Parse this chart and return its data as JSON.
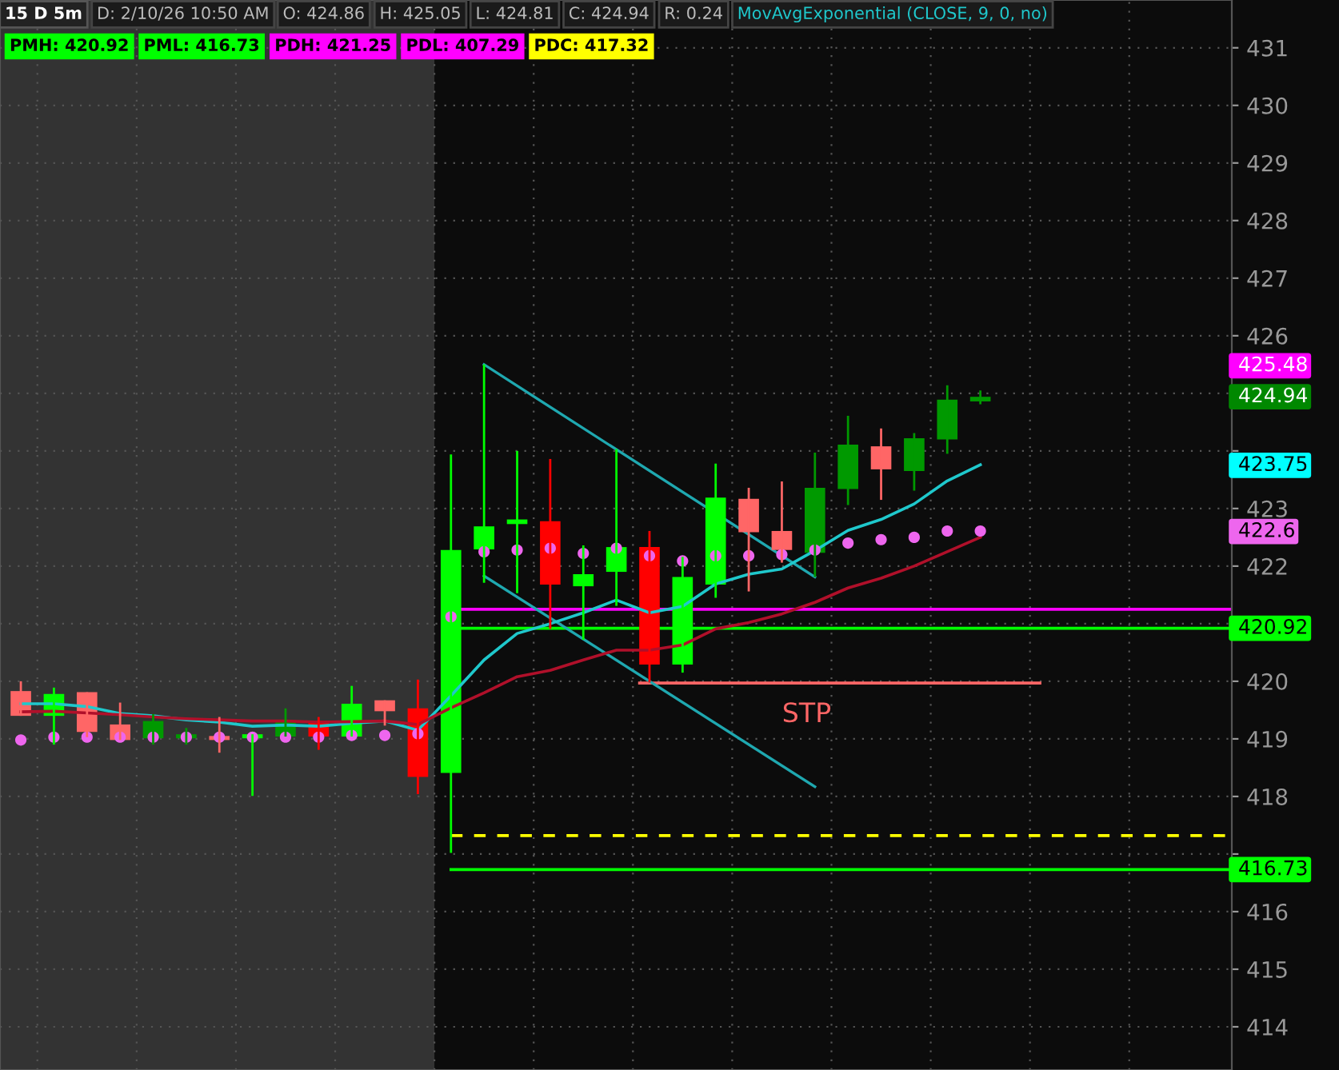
{
  "chart_data": {
    "type": "candlestick",
    "title": "15 D 5m",
    "categories": [
      null,
      null,
      null,
      null,
      null,
      null,
      null,
      null,
      null,
      null,
      null,
      null,
      null,
      null,
      null,
      null,
      null,
      null,
      null,
      null,
      null,
      null,
      null,
      null,
      null,
      null,
      null,
      null,
      null,
      null
    ],
    "ohlc": [
      [
        419.83,
        420.0,
        419.4,
        419.4
      ],
      [
        419.4,
        419.89,
        418.9,
        419.78
      ],
      [
        419.81,
        419.81,
        419.03,
        419.12
      ],
      [
        419.25,
        419.63,
        418.98,
        418.98
      ],
      [
        419.01,
        419.43,
        418.9,
        419.31
      ],
      [
        419.01,
        419.19,
        418.9,
        419.08
      ],
      [
        419.05,
        419.38,
        418.76,
        418.98
      ],
      [
        419.01,
        419.08,
        418.01,
        419.08
      ],
      [
        419.04,
        419.53,
        419.04,
        419.31
      ],
      [
        419.31,
        419.38,
        418.81,
        419.04
      ],
      [
        419.04,
        419.92,
        419.04,
        419.61
      ],
      [
        419.67,
        419.67,
        419.23,
        419.48
      ],
      [
        419.53,
        420.03,
        418.04,
        418.34
      ],
      [
        418.41,
        423.94,
        417.02,
        422.28
      ],
      [
        422.29,
        425.5,
        421.71,
        422.69
      ],
      [
        422.73,
        424.0,
        421.53,
        422.81
      ],
      [
        422.78,
        423.86,
        420.91,
        421.68
      ],
      [
        421.65,
        422.36,
        420.72,
        421.86
      ],
      [
        421.9,
        424.03,
        421.31,
        422.33
      ],
      [
        422.33,
        422.61,
        419.98,
        420.29
      ],
      [
        420.29,
        422.16,
        420.15,
        421.81
      ],
      [
        421.68,
        423.78,
        421.45,
        423.19
      ],
      [
        423.17,
        423.36,
        421.56,
        422.59
      ],
      [
        422.61,
        423.47,
        422.06,
        422.28
      ],
      [
        422.23,
        423.97,
        421.81,
        423.36
      ],
      [
        423.34,
        424.61,
        423.06,
        424.11
      ],
      [
        424.08,
        424.39,
        423.15,
        423.68
      ],
      [
        423.65,
        424.31,
        423.31,
        424.22
      ],
      [
        424.2,
        425.14,
        423.95,
        424.89
      ],
      [
        424.86,
        425.05,
        424.81,
        424.94
      ]
    ],
    "colors": [
      "#ff6666",
      "#00ff00",
      "#ff6666",
      "#ff6666",
      "#009900",
      "#009900",
      "#ff6666",
      "#00ff00",
      "#009900",
      "#ff0000",
      "#00ff00",
      "#ff6666",
      "#ff0000",
      "#00ff00",
      "#00ff00",
      "#00ff00",
      "#ff0000",
      "#00ff00",
      "#00ff00",
      "#ff0000",
      "#00ff00",
      "#00ff00",
      "#ff6666",
      "#ff6666",
      "#009900",
      "#009900",
      "#ff6666",
      "#009900",
      "#009900",
      "#009900"
    ],
    "series": [
      {
        "type": "line",
        "color": "#1fc8cc",
        "values": [
          419.61,
          419.61,
          419.56,
          419.44,
          419.4,
          419.33,
          419.29,
          419.22,
          419.24,
          419.22,
          419.27,
          419.31,
          419.15,
          419.75,
          420.37,
          420.83,
          421.0,
          421.19,
          421.41,
          421.19,
          421.3,
          421.69,
          421.86,
          421.95,
          422.27,
          422.62,
          422.81,
          423.08,
          423.48,
          423.76
        ]
      },
      {
        "type": "line",
        "color": "#b0102a",
        "values": [
          419.47,
          419.48,
          419.45,
          419.42,
          419.38,
          419.35,
          419.33,
          419.31,
          419.31,
          419.29,
          419.3,
          419.31,
          419.25,
          419.54,
          419.8,
          420.08,
          420.19,
          420.37,
          420.54,
          420.54,
          420.63,
          420.91,
          421.02,
          421.17,
          421.37,
          421.62,
          421.79,
          422.0,
          422.25,
          422.5
        ]
      },
      {
        "type": "scatter",
        "color": "#ee66ee",
        "marker": "circle",
        "values": [
          418.98,
          419.03,
          419.03,
          419.03,
          419.03,
          419.03,
          419.03,
          419.03,
          419.03,
          419.03,
          419.06,
          419.06,
          419.09,
          421.12,
          422.25,
          422.28,
          422.31,
          422.22,
          422.31,
          422.18,
          422.09,
          422.18,
          422.18,
          422.2,
          422.28,
          422.4,
          422.46,
          422.5,
          422.61,
          422.61
        ]
      }
    ],
    "ref_lines": [
      {
        "axis": "y",
        "value": 421.25,
        "label": null,
        "color": "#ff00ff"
      },
      {
        "axis": "y",
        "value": 420.92,
        "label": "420.92",
        "color": "#00ff00"
      },
      {
        "axis": "y",
        "value": 417.32,
        "label": null,
        "color": "#ffff00",
        "line_style": "dashed"
      },
      {
        "axis": "y",
        "value": 416.73,
        "label": "416.73",
        "color": "#00ff00"
      },
      {
        "axis": "y",
        "value": 419.97,
        "label": "STP",
        "color": "#ff6666"
      }
    ],
    "annotations": [
      "D: 2/10/26 10:50 AM",
      "O: 424.86",
      "H: 425.05",
      "L: 424.81",
      "C: 424.94",
      "R: 0.24",
      "MovAvgExponential (CLOSE, 9, 0, no)",
      "PMH: 420.92",
      "PML: 416.73",
      "PDH: 421.25",
      "PDL: 407.29",
      "PDC: 417.32",
      "425.48",
      "424.94",
      "423.75",
      "422.6"
    ],
    "ylim": [
      413.25,
      431.83
    ],
    "yticks": [
      414,
      415,
      416,
      {
        "value": 417,
        "label": null
      },
      418,
      419,
      420,
      {
        "value": 421,
        "label": null
      },
      422,
      423,
      {
        "value": 424,
        "label": null
      },
      {
        "value": 425,
        "label": null
      },
      426,
      427,
      428,
      429,
      430,
      431
    ],
    "tick_labels": "y",
    "grid": true
  }
}
